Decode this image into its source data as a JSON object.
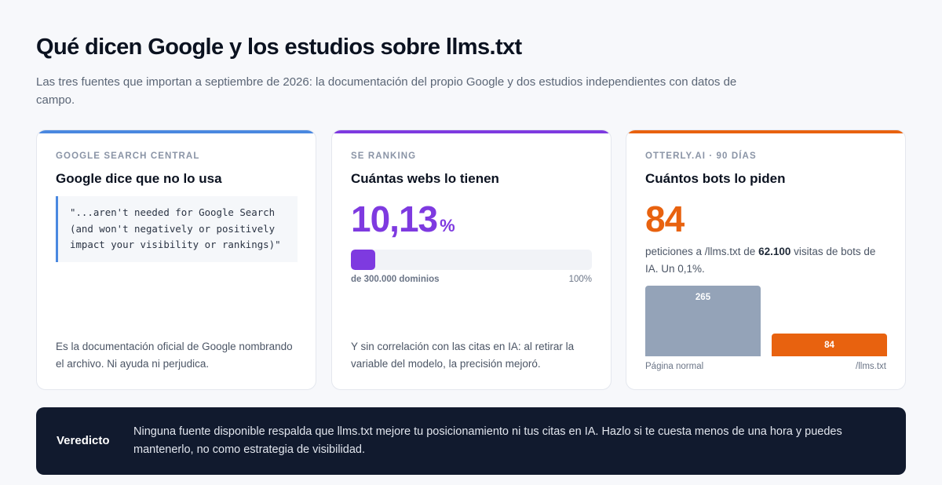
{
  "header": {
    "title": "Qué dicen Google y los estudios sobre llms.txt",
    "subtitle": "Las tres fuentes que importan a septiembre de 2026: la documentación del propio Google y dos estudios independientes con datos de campo."
  },
  "cards": [
    {
      "eyebrow": "GOOGLE SEARCH CENTRAL",
      "title": "Google dice que no lo usa",
      "quote": "\"...aren't needed for Google Search\n(and won't negatively or positively\nimpact your visibility or rankings)\"",
      "footnote": "Es la documentación oficial de Google nombrando el archivo. Ni ayuda ni perjudica.",
      "accent_color": "#4a88e0"
    },
    {
      "eyebrow": "SE RANKING",
      "title": "Cuántas webs lo tienen",
      "value": "10,13",
      "unit": "%",
      "progress_percent": 10.13,
      "caption_left": "de 300.000 dominios",
      "caption_right": "100%",
      "footnote": "Y sin correlación con las citas en IA: al retirar la variable del modelo, la precisión mejoró.",
      "accent_color": "#7e3ae0"
    },
    {
      "eyebrow": "OTTERLY.AI · 90 DÍAS",
      "title": "Cuántos bots lo piden",
      "value": "84",
      "desc_before": "peticiones a /llms.txt de ",
      "desc_bold": "62.100",
      "desc_after": " visitas de bots de IA. Un 0,1%.",
      "accent_color": "#e8620f"
    }
  ],
  "chart_data": {
    "type": "bar",
    "categories": [
      "Página normal",
      "/llms.txt"
    ],
    "values": [
      265,
      84
    ],
    "colors": [
      "#94a3b8",
      "#e8620f"
    ]
  },
  "verdict": {
    "label": "Veredicto",
    "text": "Ninguna fuente disponible respalda que llms.txt mejore tu posicionamiento ni tus citas en IA. Hazlo si te cuesta menos de una hora y puedes mantenerlo, no como estrategia de visibilidad."
  }
}
